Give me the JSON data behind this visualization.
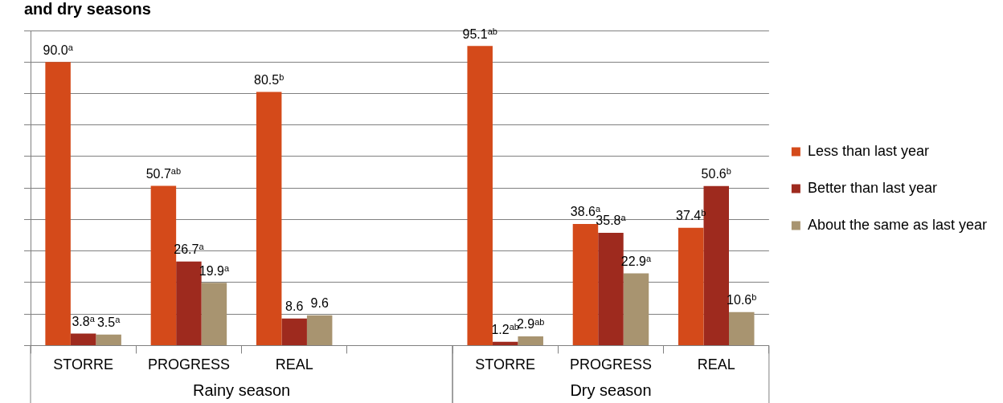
{
  "chart_data": {
    "type": "bar",
    "title": "and dry seasons",
    "categories": [
      "STORRE",
      "PROGRESS",
      "REAL",
      null,
      "STORRE",
      "PROGRESS",
      "REAL"
    ],
    "series": [
      {
        "name": "Less than last year",
        "color": "#d44a1a",
        "values": [
          90.0,
          50.7,
          80.5,
          null,
          95.1,
          38.6,
          37.4
        ],
        "value_labels": [
          "90.0$^{a}$",
          "50.7$^{ab}$",
          "80.5$^{b}$",
          null,
          "95.1$^{ab}$",
          "38.6$^{a}$",
          "37.4$^{b}$"
        ]
      },
      {
        "name": "Better than last year",
        "color": "#9e2a1e",
        "values": [
          3.8,
          26.7,
          8.6,
          null,
          1.2,
          35.8,
          50.6
        ],
        "value_labels": [
          "3.8$^{a}$",
          "26.7$^{a}$",
          "8.6",
          null,
          "1.2$^{ab}$",
          "35.8$^{a}$",
          "50.6$^{b}$"
        ]
      },
      {
        "name": "About the same as last year",
        "color": "#a89470",
        "values": [
          3.5,
          19.9,
          9.6,
          null,
          2.9,
          22.9,
          10.6
        ],
        "value_labels": [
          "3.5$^{a}$",
          "19.9$^{a}$",
          "9.6",
          null,
          "2.9$^{ab}$",
          "22.9$^{a}$",
          "10.6$^{b}$"
        ]
      }
    ],
    "annotations": [
      "Rainy season",
      "Dry season"
    ],
    "ylim": [
      0,
      100
    ],
    "yticks": [
      {
        "value": 0,
        "label": null
      },
      {
        "value": 10,
        "label": null
      },
      {
        "value": 20,
        "label": null
      },
      {
        "value": 30,
        "label": null
      },
      {
        "value": 40,
        "label": null
      },
      {
        "value": 50,
        "label": null
      },
      {
        "value": 60,
        "label": null
      },
      {
        "value": 70,
        "label": null
      },
      {
        "value": 80,
        "label": null
      },
      {
        "value": 90,
        "label": null
      },
      {
        "value": 100,
        "label": null
      }
    ],
    "tick_labels": "x",
    "grid": "y",
    "legend": "right"
  }
}
